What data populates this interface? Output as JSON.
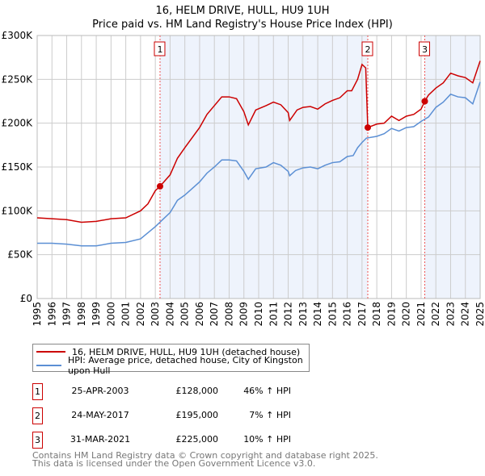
{
  "chart_data": {
    "type": "line",
    "title": "16, HELM DRIVE, HULL, HU9 1UH",
    "subtitle": "Price paid vs. HM Land Registry's House Price Index (HPI)",
    "xlim": [
      1995,
      2025
    ],
    "ylim": [
      0,
      300000
    ],
    "x_ticks": [
      "1995",
      "1996",
      "1997",
      "1998",
      "1999",
      "2000",
      "2001",
      "2002",
      "2003",
      "2004",
      "2005",
      "2006",
      "2007",
      "2008",
      "2009",
      "2010",
      "2011",
      "2012",
      "2013",
      "2014",
      "2015",
      "2016",
      "2017",
      "2018",
      "2019",
      "2020",
      "2021",
      "2022",
      "2023",
      "2024",
      "2025"
    ],
    "y_ticks": [
      {
        "v": 0,
        "label": "£0"
      },
      {
        "v": 50000,
        "label": "£50K"
      },
      {
        "v": 100000,
        "label": "£100K"
      },
      {
        "v": 150000,
        "label": "£150K"
      },
      {
        "v": 200000,
        "label": "£200K"
      },
      {
        "v": 250000,
        "label": "£250K"
      },
      {
        "v": 300000,
        "label": "£300K"
      }
    ],
    "grid": true,
    "series": [
      {
        "name": "16, HELM DRIVE, HULL, HU9 1UH (detached house)",
        "color": "#cc0000",
        "x": [
          1995,
          1996,
          1997,
          1998,
          1999,
          2000,
          2001,
          2002,
          2002.5,
          2003,
          2003.32,
          2004,
          2004.5,
          2005,
          2006,
          2006.5,
          2007,
          2007.5,
          2008,
          2008.5,
          2009,
          2009.3,
          2009.8,
          2010.5,
          2011,
          2011.5,
          2012,
          2012.1,
          2012.6,
          2013,
          2013.5,
          2014,
          2014.5,
          2015,
          2015.5,
          2016,
          2016.3,
          2016.7,
          2017,
          2017.25,
          2017.39,
          2018,
          2018.5,
          2019,
          2019.5,
          2020,
          2020.5,
          2021,
          2021.25,
          2021.5,
          2022,
          2022.5,
          2023,
          2023.5,
          2024,
          2024.5,
          2025
        ],
        "values": [
          92000,
          91000,
          90000,
          87000,
          88000,
          91000,
          92000,
          100000,
          108000,
          123000,
          128000,
          141000,
          160000,
          172000,
          195000,
          210000,
          220000,
          230000,
          230000,
          228000,
          213000,
          198000,
          215000,
          220000,
          224000,
          221000,
          212000,
          203000,
          215000,
          218000,
          219000,
          216000,
          222000,
          226000,
          229000,
          237000,
          237000,
          250000,
          267000,
          263000,
          195000,
          199000,
          200000,
          208000,
          203000,
          208000,
          210000,
          216000,
          225000,
          232000,
          240000,
          246000,
          257000,
          254000,
          252000,
          246000,
          271000
        ]
      },
      {
        "name": "HPI: Average price, detached house, City of Kingston upon Hull",
        "color": "#5b8fd4",
        "x": [
          1995,
          1996,
          1997,
          1998,
          1999,
          2000,
          2001,
          2002,
          2003,
          2003.5,
          2004,
          2004.5,
          2005,
          2006,
          2006.5,
          2007,
          2007.5,
          2008,
          2008.5,
          2009,
          2009.3,
          2009.8,
          2010.5,
          2011,
          2011.5,
          2012,
          2012.1,
          2012.5,
          2013,
          2013.5,
          2014,
          2014.5,
          2015,
          2015.5,
          2016,
          2016.4,
          2016.7,
          2017,
          2017.3,
          2018,
          2018.5,
          2019,
          2019.5,
          2020,
          2020.5,
          2021,
          2021.5,
          2022,
          2022.5,
          2023,
          2023.5,
          2024,
          2024.5,
          2025
        ],
        "values": [
          63000,
          63000,
          62000,
          60000,
          60000,
          63000,
          64000,
          68000,
          82000,
          90000,
          98000,
          112000,
          118000,
          133000,
          143000,
          150000,
          158000,
          158000,
          157000,
          145000,
          136000,
          148000,
          150000,
          155000,
          152000,
          145000,
          140000,
          146000,
          149000,
          150000,
          148000,
          152000,
          155000,
          156000,
          162000,
          163000,
          172000,
          178000,
          183000,
          185000,
          188000,
          194000,
          191000,
          195000,
          196000,
          202000,
          207000,
          218000,
          224000,
          233000,
          230000,
          229000,
          222000,
          247000
        ]
      }
    ],
    "sales": [
      {
        "id": "1",
        "x": 2003.32,
        "value": 128000,
        "date": "25-APR-2003",
        "price": "£128,000",
        "hpi": "46% ↑ HPI"
      },
      {
        "id": "2",
        "x": 2017.39,
        "value": 195000,
        "date": "24-MAY-2017",
        "price": "£195,000",
        "hpi": "7% ↑ HPI"
      },
      {
        "id": "3",
        "x": 2021.25,
        "value": 225000,
        "date": "31-MAR-2021",
        "price": "£225,000",
        "hpi": "10% ↑ HPI"
      }
    ],
    "shaded_ranges": [
      [
        2003.32,
        2017.39
      ],
      [
        2021.25,
        2025
      ]
    ]
  },
  "footer": {
    "line1": "Contains HM Land Registry data © Crown copyright and database right 2025.",
    "line2": "This data is licensed under the Open Government Licence v3.0."
  }
}
